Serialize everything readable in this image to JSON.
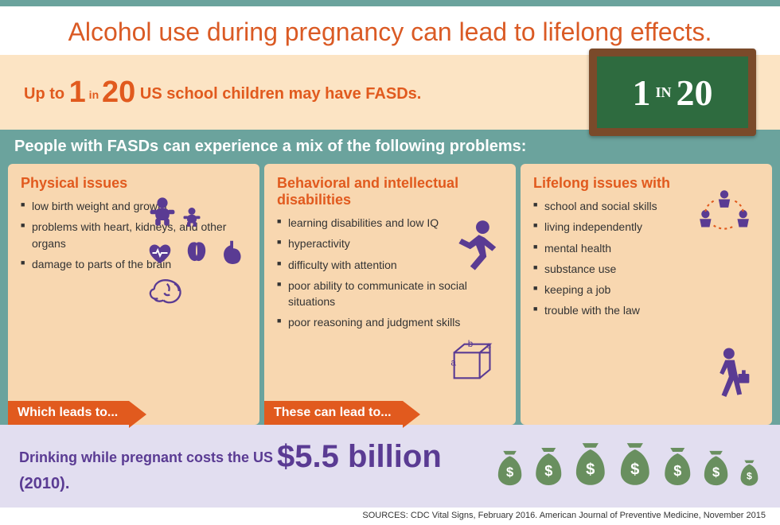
{
  "colors": {
    "teal": "#6ba39d",
    "orange": "#da5a24",
    "dark_orange": "#e15a1e",
    "peach": "#fce4c4",
    "peach_card": "#f8d7b0",
    "lav": "#e2def0",
    "purple": "#5a3b93",
    "chalk_bg": "#2e6b3f",
    "chalk_text": "#ffffff",
    "arrow": "#e15a1e",
    "bag": "#698f5f"
  },
  "title": "Alcohol use during pregnancy can lead to lifelong effects.",
  "stat": {
    "pre": "Up to ",
    "n1": "1",
    "mid": " in ",
    "n2": "20",
    "post": " US school children may have FASDs."
  },
  "chalk": {
    "n1": "1",
    "mid": "IN",
    "n2": "20"
  },
  "section_head": "People with FASDs can experience a mix of the following problems:",
  "cards": [
    {
      "title": "Physical issues",
      "arrow": "Which leads to...",
      "items": [
        "low birth weight and growth",
        "problems with heart, kidneys, and other organs",
        "damage to parts of the brain"
      ]
    },
    {
      "title": "Behavioral and intellectual disabilities",
      "arrow": "These can lead to...",
      "items": [
        "learning disabilities and low IQ",
        "hyperactivity",
        "difficulty with attention",
        "poor ability to communicate in social situations",
        "poor reasoning and judgment skills"
      ]
    },
    {
      "title": "Lifelong issues with",
      "arrow": "",
      "items": [
        "school and social skills",
        "living independently",
        "mental health",
        "substance use",
        "keeping a job",
        "trouble with the law"
      ]
    }
  ],
  "cost": {
    "pre": "Drinking while pregnant costs the US ",
    "amt": "$5.5 billion",
    "yr": " (2010)."
  },
  "bags": [
    46,
    50,
    56,
    56,
    50,
    46,
    34
  ],
  "sources": "SOURCES: CDC Vital Signs, February 2016.  American Journal of Preventive Medicine, November 2015"
}
